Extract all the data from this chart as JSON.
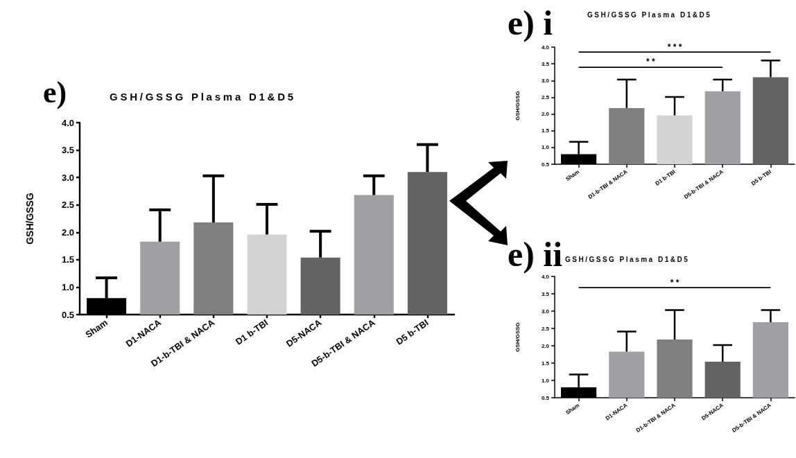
{
  "chart_data": [
    {
      "type": "bar",
      "title": "GSH/GSSG Plasma D1&D5",
      "ylabel": "GSH/GSSG",
      "annotations": [
        "e)"
      ],
      "categories": [
        "Sham",
        "D1-NACA",
        "D1-b-TBI & NACA",
        "D1 b-TBI",
        "D5-NACA",
        "D5-b-TBI & NACA",
        "D5 b-TBI"
      ],
      "values": [
        0.8,
        1.83,
        2.18,
        1.96,
        1.54,
        2.68,
        3.1
      ],
      "colors": [
        "#000000",
        "#a09fa4",
        "#808080",
        "#d3d3d3",
        "#636363",
        "#a09fa4",
        "#636363"
      ],
      "errors": [
        [
          0.8,
          1.17
        ],
        [
          1.83,
          2.41
        ],
        [
          2.18,
          3.03
        ],
        [
          1.96,
          2.51
        ],
        [
          1.54,
          2.02
        ],
        [
          2.68,
          3.03
        ],
        [
          3.1,
          3.6
        ]
      ],
      "ylim": [
        0.5,
        4.0
      ],
      "yticks": [
        {
          "value": 0.5,
          "label": "0.5"
        },
        {
          "value": 1,
          "label": "1.0"
        },
        {
          "value": 1.5,
          "label": "1.5"
        },
        {
          "value": 2,
          "label": "2.0"
        },
        {
          "value": 2.5,
          "label": "2.5"
        },
        {
          "value": 3,
          "label": "3.0"
        },
        {
          "value": 3.5,
          "label": "3.5"
        },
        {
          "value": 4,
          "label": "4.0"
        }
      ],
      "grid": false
    },
    {
      "type": "bar",
      "title": "GSH/GSSG Plasma D1&D5",
      "ylabel": "GSH/GSSG",
      "annotations": [
        "e) i"
      ],
      "ref_lines": [
        {
          "axis": "y",
          "value": 3.85,
          "label": "* * *",
          "color": "#000000"
        },
        {
          "axis": "y",
          "value": 3.41,
          "label": "* *",
          "color": "#000000"
        }
      ],
      "categories": [
        "Sham",
        "D1-b-TBI & NACA",
        "D1 b-TBI",
        "D5-b-TBI & NACA",
        "D5 b-TBI"
      ],
      "values": [
        0.8,
        2.18,
        1.96,
        2.68,
        3.1
      ],
      "colors": [
        "#000000",
        "#808080",
        "#d3d3d3",
        "#a09fa4",
        "#636363"
      ],
      "errors": [
        [
          0.8,
          1.17
        ],
        [
          2.18,
          3.03
        ],
        [
          1.96,
          2.51
        ],
        [
          2.68,
          3.03
        ],
        [
          3.1,
          3.6
        ]
      ],
      "ylim": [
        0.5,
        4.0
      ],
      "yticks": [
        {
          "value": 0.5,
          "label": "0.5"
        },
        {
          "value": 1,
          "label": "1.0"
        },
        {
          "value": 1.5,
          "label": "1.5"
        },
        {
          "value": 2,
          "label": "2.0"
        },
        {
          "value": 2.5,
          "label": "2.5"
        },
        {
          "value": 3,
          "label": "3.0"
        },
        {
          "value": 3.5,
          "label": "3.5"
        },
        {
          "value": 4,
          "label": "4.0"
        }
      ],
      "grid": false
    },
    {
      "type": "bar",
      "title": "GSH/GSSG Plasma D1&D5",
      "ylabel": "GSH/GSSG",
      "annotations": [
        "e) ii"
      ],
      "ref_lines": [
        {
          "axis": "y",
          "value": 3.69,
          "label": "* *",
          "color": "#000000"
        }
      ],
      "categories": [
        "Sham",
        "D1-NACA",
        "D1-b-TBI & NACA",
        "D5-NACA",
        "D5-b-TBI & NACA"
      ],
      "values": [
        0.8,
        1.83,
        2.18,
        1.54,
        2.68
      ],
      "colors": [
        "#000000",
        "#a09fa4",
        "#808080",
        "#636363",
        "#a09fa4"
      ],
      "errors": [
        [
          0.8,
          1.17
        ],
        [
          1.83,
          2.41
        ],
        [
          2.18,
          3.03
        ],
        [
          1.54,
          2.02
        ],
        [
          2.68,
          3.03
        ]
      ],
      "ylim": [
        0.5,
        4.0
      ],
      "yticks": [
        {
          "value": 0.5,
          "label": "0.5"
        },
        {
          "value": 1,
          "label": "1.0"
        },
        {
          "value": 1.5,
          "label": "1.5"
        },
        {
          "value": 2,
          "label": "2.0"
        },
        {
          "value": 2.5,
          "label": "2.5"
        },
        {
          "value": 3,
          "label": "3.0"
        },
        {
          "value": 3.5,
          "label": "3.5"
        },
        {
          "value": 4,
          "label": "4.0"
        }
      ],
      "grid": false
    }
  ]
}
